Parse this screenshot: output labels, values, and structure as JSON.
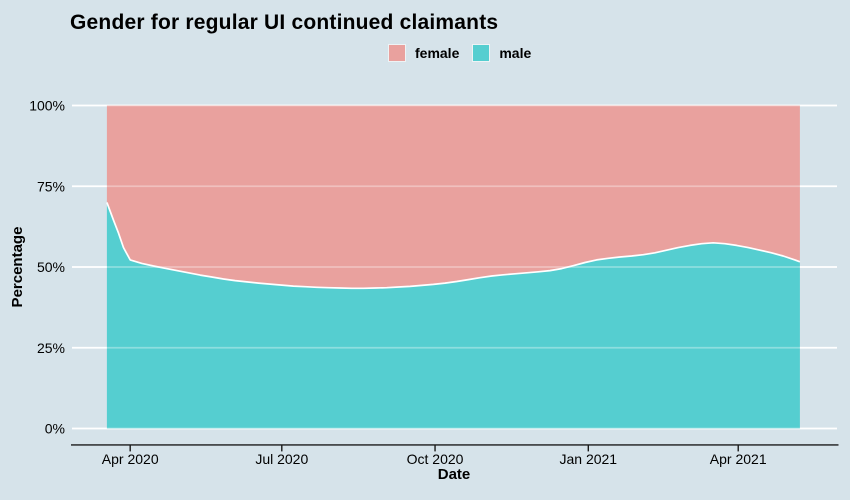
{
  "title": "Gender for regular UI continued claimants",
  "legend": {
    "position": "top",
    "items": [
      {
        "label": "female",
        "color": "#E9A19E"
      },
      {
        "label": "male",
        "color": "#55CED0"
      }
    ]
  },
  "axes": {
    "x_label": "Date",
    "y_label": "Percentage",
    "x_tick_labels": [
      "Apr 2020",
      "Jul 2020",
      "Oct 2020",
      "Jan 2021",
      "Apr 2021"
    ],
    "y_tick_labels": [
      "0%",
      "25%",
      "50%",
      "75%",
      "100%"
    ]
  },
  "colors": {
    "background": "#D6E3EA",
    "female_fill": "#E9A19E",
    "male_fill": "#55CED0",
    "gridline": "#FFFFFF",
    "boundary_line": "#FFFFFF",
    "axis_line": "#1A1A1A",
    "text": "#000000"
  },
  "chart_data": {
    "type": "area",
    "subtype": "percent-stacked",
    "title": "Gender for regular UI continued claimants",
    "xlabel": "Date",
    "ylabel": "Percentage",
    "ylim": [
      0,
      100
    ],
    "grid": "horizontal white gridlines only",
    "legend_position": "top",
    "x_ticks": [
      {
        "label": "Apr 2020",
        "date": "2020-04-01"
      },
      {
        "label": "Jul 2020",
        "date": "2020-07-01"
      },
      {
        "label": "Oct 2020",
        "date": "2020-10-01"
      },
      {
        "label": "Jan 2021",
        "date": "2021-01-01"
      },
      {
        "label": "Apr 2021",
        "date": "2021-04-01"
      }
    ],
    "y_ticks": [
      {
        "label": "0%",
        "value": 0
      },
      {
        "label": "25%",
        "value": 25
      },
      {
        "label": "50%",
        "value": 50
      },
      {
        "label": "75%",
        "value": 75
      },
      {
        "label": "100%",
        "value": 100
      }
    ],
    "series_names": [
      "male",
      "female"
    ],
    "note": "female_pct = 100 - male_pct (shares sum to 100%)",
    "points_format": [
      "date",
      "male_pct",
      "female_pct"
    ],
    "points": [
      [
        "2020-03-18",
        70.0,
        30.0
      ],
      [
        "2020-03-22",
        64.5,
        35.5
      ],
      [
        "2020-03-25",
        60.5,
        39.5
      ],
      [
        "2020-03-28",
        56.0,
        44.0
      ],
      [
        "2020-04-01",
        52.2,
        47.8
      ],
      [
        "2020-04-08",
        51.1,
        48.9
      ],
      [
        "2020-04-15",
        50.3,
        49.7
      ],
      [
        "2020-04-22",
        49.6,
        50.4
      ],
      [
        "2020-04-29",
        48.9,
        51.1
      ],
      [
        "2020-05-06",
        48.2,
        51.8
      ],
      [
        "2020-05-13",
        47.5,
        52.5
      ],
      [
        "2020-05-20",
        46.9,
        53.1
      ],
      [
        "2020-05-27",
        46.3,
        53.7
      ],
      [
        "2020-06-03",
        45.8,
        54.2
      ],
      [
        "2020-06-10",
        45.4,
        54.6
      ],
      [
        "2020-06-17",
        45.0,
        55.0
      ],
      [
        "2020-06-24",
        44.7,
        55.3
      ],
      [
        "2020-07-01",
        44.4,
        55.6
      ],
      [
        "2020-07-08",
        44.1,
        55.9
      ],
      [
        "2020-07-15",
        43.9,
        56.1
      ],
      [
        "2020-07-22",
        43.7,
        56.3
      ],
      [
        "2020-07-29",
        43.6,
        56.4
      ],
      [
        "2020-08-05",
        43.5,
        56.5
      ],
      [
        "2020-08-12",
        43.4,
        56.6
      ],
      [
        "2020-08-19",
        43.4,
        56.6
      ],
      [
        "2020-08-26",
        43.5,
        56.5
      ],
      [
        "2020-09-02",
        43.6,
        56.4
      ],
      [
        "2020-09-09",
        43.8,
        56.2
      ],
      [
        "2020-09-16",
        44.0,
        56.0
      ],
      [
        "2020-09-23",
        44.3,
        55.7
      ],
      [
        "2020-09-30",
        44.6,
        55.4
      ],
      [
        "2020-10-07",
        45.0,
        55.0
      ],
      [
        "2020-10-14",
        45.5,
        54.5
      ],
      [
        "2020-10-21",
        46.1,
        53.9
      ],
      [
        "2020-10-28",
        46.7,
        53.3
      ],
      [
        "2020-11-04",
        47.2,
        52.8
      ],
      [
        "2020-11-11",
        47.6,
        52.4
      ],
      [
        "2020-11-18",
        47.9,
        52.1
      ],
      [
        "2020-11-25",
        48.2,
        51.8
      ],
      [
        "2020-12-02",
        48.5,
        51.5
      ],
      [
        "2020-12-09",
        48.9,
        51.1
      ],
      [
        "2020-12-16",
        49.5,
        50.5
      ],
      [
        "2020-12-23",
        50.4,
        49.6
      ],
      [
        "2020-12-30",
        51.4,
        48.6
      ],
      [
        "2021-01-06",
        52.2,
        47.8
      ],
      [
        "2021-01-13",
        52.7,
        47.3
      ],
      [
        "2021-01-20",
        53.1,
        46.9
      ],
      [
        "2021-01-27",
        53.4,
        46.6
      ],
      [
        "2021-02-03",
        53.8,
        46.2
      ],
      [
        "2021-02-10",
        54.4,
        45.6
      ],
      [
        "2021-02-17",
        55.2,
        44.8
      ],
      [
        "2021-02-24",
        56.0,
        44.0
      ],
      [
        "2021-03-03",
        56.7,
        43.3
      ],
      [
        "2021-03-10",
        57.2,
        42.8
      ],
      [
        "2021-03-17",
        57.5,
        42.5
      ],
      [
        "2021-03-24",
        57.2,
        42.8
      ],
      [
        "2021-03-31",
        56.7,
        43.3
      ],
      [
        "2021-04-07",
        56.0,
        44.0
      ],
      [
        "2021-04-14",
        55.2,
        44.8
      ],
      [
        "2021-04-21",
        54.4,
        45.6
      ],
      [
        "2021-04-28",
        53.4,
        46.6
      ],
      [
        "2021-05-05",
        52.2,
        47.8
      ],
      [
        "2021-05-08",
        51.6,
        48.4
      ]
    ]
  }
}
